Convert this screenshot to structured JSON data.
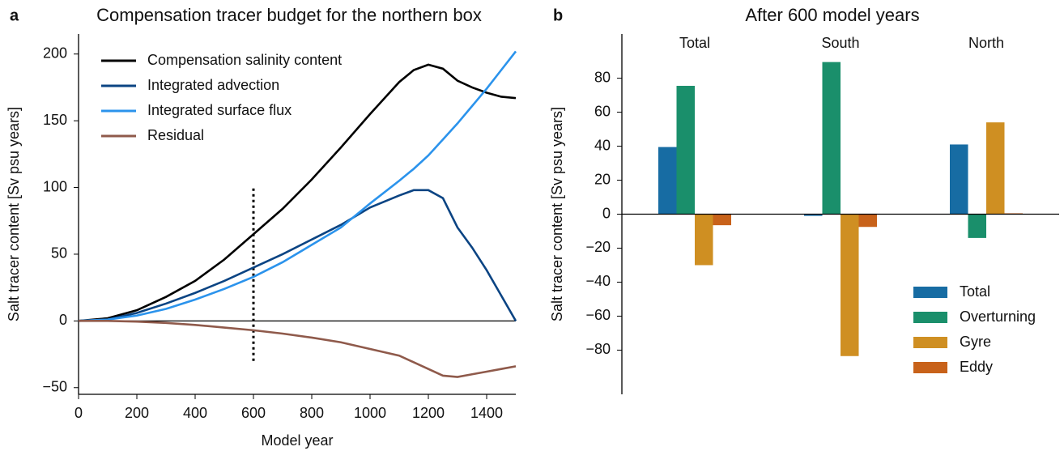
{
  "chart_data": [
    {
      "type": "line",
      "panel_label": "a",
      "title": "Compensation tracer budget for the northern box",
      "xlabel": "Model year",
      "ylabel": "Salt tracer content [Sv psu years]",
      "x": [
        0,
        100,
        200,
        300,
        400,
        500,
        600,
        700,
        800,
        900,
        1000,
        1100,
        1150,
        1200,
        1250,
        1300,
        1350,
        1400,
        1450,
        1500
      ],
      "series": [
        {
          "name": "Compensation salinity content",
          "color": "#000000",
          "values": [
            0,
            2,
            8,
            18,
            30,
            46,
            65,
            84,
            106,
            130,
            155,
            179,
            188,
            192,
            189,
            180,
            175,
            171,
            168,
            167
          ]
        },
        {
          "name": "Integrated advection",
          "color": "#0b4483",
          "values": [
            0,
            1,
            6,
            13,
            21,
            30,
            40,
            50,
            61,
            72,
            85,
            94,
            98,
            98,
            92,
            70,
            55,
            38,
            19,
            0
          ]
        },
        {
          "name": "Integrated surface flux",
          "color": "#2b93ec",
          "values": [
            0,
            1,
            4,
            9,
            16,
            24,
            33,
            44,
            57,
            70,
            88,
            105,
            114,
            124,
            136,
            148,
            161,
            174,
            188,
            202
          ]
        },
        {
          "name": "Residual",
          "color": "#8f5a4b",
          "values": [
            0,
            0,
            -0.5,
            -1.5,
            -3,
            -5,
            -7,
            -9.5,
            -12.5,
            -16,
            -21,
            -26,
            -31,
            -36,
            -41,
            -42,
            -40,
            -38,
            -36,
            -34
          ]
        }
      ],
      "xlim": [
        0,
        1500
      ],
      "xticks": [
        0,
        200,
        400,
        600,
        800,
        1000,
        1200,
        1400
      ],
      "ylim": [
        -55,
        215
      ],
      "yticks": [
        {
          "value": -50,
          "label": "−50"
        },
        0,
        50,
        100,
        150,
        200
      ],
      "legend": "upper left",
      "vline": {
        "x": 600,
        "y": [
          -30,
          100
        ]
      }
    },
    {
      "type": "bar",
      "panel_label": "b",
      "title": "After 600 model years",
      "ylabel": "Salt tracer content [Sv psu years]",
      "categories": [
        "Total",
        "South",
        "North"
      ],
      "series": [
        {
          "name": "Total",
          "color": "#176ca3",
          "values": [
            39.5,
            -1,
            41
          ]
        },
        {
          "name": "Overturning",
          "color": "#1a8f6b",
          "values": [
            75.5,
            89.5,
            -14
          ]
        },
        {
          "name": "Gyre",
          "color": "#cf8f22",
          "values": [
            -30,
            -83.5,
            54
          ]
        },
        {
          "name": "Eddy",
          "color": "#c8621a",
          "values": [
            -6.5,
            -7.5,
            0.5
          ]
        }
      ],
      "ylim": [
        -106,
        106
      ],
      "yticks": [
        {
          "value": -80,
          "label": "−80"
        },
        {
          "value": -60,
          "label": "−60"
        },
        {
          "value": -40,
          "label": "−40"
        },
        {
          "value": -20,
          "label": "−20"
        },
        0,
        20,
        40,
        60,
        80
      ],
      "legend": "lower right"
    }
  ]
}
